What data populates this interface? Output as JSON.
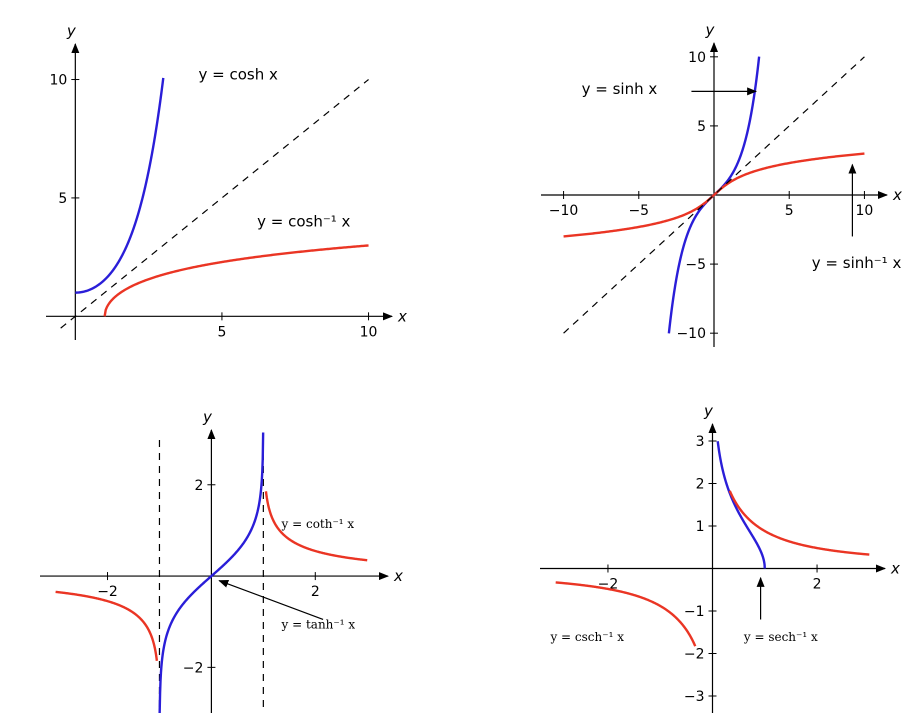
{
  "colors": {
    "blue": "#2a1ed8",
    "red": "#ea3524",
    "axis": "#000000"
  },
  "chart_data": [
    {
      "id": "cosh",
      "type": "line",
      "xlim": [
        -1,
        10.8
      ],
      "ylim": [
        -1,
        11.5
      ],
      "xticks": [
        5,
        10
      ],
      "yticks": [
        5,
        10
      ],
      "xlabel": "x",
      "ylabel": "y",
      "series": [
        {
          "name": "y = cosh x",
          "color": "blue",
          "fn": "cosh",
          "domain": [
            0,
            3
          ]
        },
        {
          "name": "y = cosh⁻¹ x",
          "color": "red",
          "fn": "acosh",
          "domain": [
            1,
            10
          ]
        },
        {
          "name": "",
          "color": "axis",
          "fn": "identity",
          "domain": [
            -0.5,
            10
          ],
          "dashed": true
        }
      ],
      "annotations": [
        {
          "text": "y = cosh x",
          "x": 4.2,
          "y": 10
        },
        {
          "text": "y = cosh⁻¹ x",
          "x": 6.2,
          "y": 3.8
        }
      ]
    },
    {
      "id": "sinh",
      "type": "line",
      "xlim": [
        -11.5,
        11.5
      ],
      "ylim": [
        -11,
        11
      ],
      "xticks": [
        -10,
        -5,
        5,
        10
      ],
      "xtick_labels": [
        "−10",
        "−5",
        "5",
        "10"
      ],
      "yticks": [
        -10,
        -5,
        5,
        10
      ],
      "ytick_labels": [
        "−10",
        "−5",
        "5",
        "10"
      ],
      "xlabel": "x",
      "ylabel": "y",
      "series": [
        {
          "name": "y = sinh x",
          "color": "blue",
          "fn": "sinh",
          "domain": [
            -3,
            3
          ]
        },
        {
          "name": "y = sinh⁻¹ x",
          "color": "red",
          "fn": "asinh",
          "domain": [
            -10,
            10
          ]
        },
        {
          "name": "",
          "color": "axis",
          "fn": "identity",
          "domain": [
            -10,
            10
          ],
          "dashed": true
        }
      ],
      "annotations": [
        {
          "text": "y = sinh x",
          "x": -8.8,
          "y": 7.3
        },
        {
          "text": "y = sinh⁻¹ x",
          "x": 6.5,
          "y": -5.3
        }
      ]
    },
    {
      "id": "tanh-coth",
      "type": "line",
      "xlim": [
        -3.3,
        3.4
      ],
      "ylim": [
        -3,
        3.2
      ],
      "xticks": [
        -2,
        2
      ],
      "xtick_labels": [
        "−2",
        "2"
      ],
      "yticks": [
        -2,
        2
      ],
      "ytick_labels": [
        "−2",
        "2"
      ],
      "xlabel": "x",
      "ylabel": "y",
      "series": [
        {
          "name": "y = tanh⁻¹ x",
          "color": "blue",
          "fn": "atanh",
          "domain": [
            -0.9963,
            0.9963
          ]
        },
        {
          "name": "y = coth⁻¹ x",
          "color": "red",
          "fn": "acoth",
          "domain": [
            1.05,
            3
          ]
        },
        {
          "name": "",
          "color": "red",
          "fn": "acoth",
          "domain": [
            -3,
            -1.05
          ]
        }
      ],
      "annotations": [
        {
          "text": "y = coth⁻¹ x",
          "x": 1.35,
          "y": 1.05
        },
        {
          "text": "y = tanh⁻¹ x",
          "x": 1.35,
          "y": -1.15
        }
      ]
    },
    {
      "id": "sech-csch",
      "type": "line",
      "xlim": [
        -3.3,
        3.3
      ],
      "ylim": [
        -3.4,
        3.4
      ],
      "xticks": [
        -2,
        2
      ],
      "xtick_labels": [
        "−2",
        "2"
      ],
      "yticks": [
        -3,
        -2,
        -1,
        1,
        2,
        3
      ],
      "ytick_labels": [
        "−3",
        "−2",
        "−1",
        "1",
        "2",
        "3"
      ],
      "xlabel": "x",
      "ylabel": "y",
      "series": [
        {
          "name": "y = sech⁻¹ x",
          "color": "blue",
          "fn": "asech",
          "domain": [
            0.1,
            1
          ]
        },
        {
          "name": "y = csch⁻¹ x",
          "color": "red",
          "fn": "acsch",
          "domain": [
            0.33,
            3
          ]
        },
        {
          "name": "",
          "color": "red",
          "fn": "acsch",
          "domain": [
            -3,
            -0.33
          ]
        }
      ],
      "annotations": [
        {
          "text": "y = csch⁻¹ x",
          "x": -3.1,
          "y": -1.7
        },
        {
          "text": "y = sech⁻¹ x",
          "x": 0.6,
          "y": -1.7
        }
      ]
    }
  ]
}
